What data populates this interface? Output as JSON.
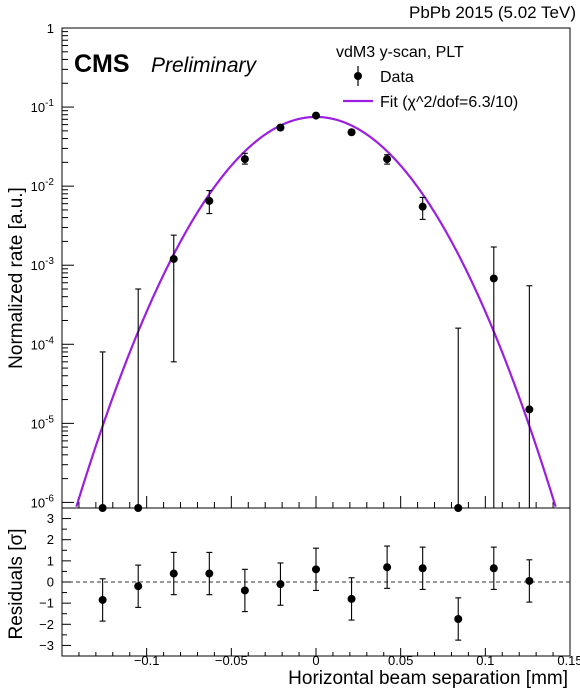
{
  "header": {
    "title": "PbPb 2015 (5.02 TeV)"
  },
  "branding": {
    "cms": "CMS",
    "preliminary": "Preliminary"
  },
  "legend": {
    "title": "vdM3 y-scan, PLT",
    "data_label": "Data",
    "fit_label": "Fit (χ^2/dof=6.3/10)"
  },
  "colors": {
    "fit": "#9a1fe0",
    "data": "#000000",
    "zero_line": "#333333"
  },
  "chart_data": [
    {
      "type": "scatter",
      "panel": "main",
      "ylabel": "Normalized rate [a.u.]",
      "yscale": "log",
      "ylim": [
        8.5e-07,
        1
      ],
      "xlim": [
        -0.15,
        0.15
      ],
      "yticks": [
        {
          "v": 1,
          "label": "1"
        },
        {
          "v": 0.1,
          "label": "10",
          "exp": "-1"
        },
        {
          "v": 0.01,
          "label": "10",
          "exp": "-2"
        },
        {
          "v": 0.001,
          "label": "10",
          "exp": "-3"
        },
        {
          "v": 0.0001,
          "label": "10",
          "exp": "-4"
        },
        {
          "v": 1e-05,
          "label": "10",
          "exp": "-5"
        },
        {
          "v": 1e-06,
          "label": "10",
          "exp": "-6"
        }
      ],
      "series": [
        {
          "name": "Data",
          "points": [
            {
              "x": -0.126,
              "y": 8.5e-07,
              "lo": 8.5e-07,
              "hi": 8e-05
            },
            {
              "x": -0.105,
              "y": 8.5e-07,
              "lo": 8.5e-07,
              "hi": 0.0005
            },
            {
              "x": -0.084,
              "y": 0.0012,
              "lo": 6e-05,
              "hi": 0.0024
            },
            {
              "x": -0.063,
              "y": 0.0065,
              "lo": 0.0045,
              "hi": 0.0088
            },
            {
              "x": -0.042,
              "y": 0.022,
              "lo": 0.019,
              "hi": 0.026
            },
            {
              "x": -0.021,
              "y": 0.055,
              "lo": 0.051,
              "hi": 0.059
            },
            {
              "x": 0.0,
              "y": 0.078,
              "lo": 0.074,
              "hi": 0.082
            },
            {
              "x": 0.021,
              "y": 0.048,
              "lo": 0.045,
              "hi": 0.052
            },
            {
              "x": 0.042,
              "y": 0.022,
              "lo": 0.019,
              "hi": 0.025
            },
            {
              "x": 0.063,
              "y": 0.0055,
              "lo": 0.0038,
              "hi": 0.0072
            },
            {
              "x": 0.084,
              "y": 8.5e-07,
              "lo": 8.5e-07,
              "hi": 0.00016
            },
            {
              "x": 0.105,
              "y": 0.00068,
              "lo": 8.5e-07,
              "hi": 0.0017
            },
            {
              "x": 0.126,
              "y": 1.5e-05,
              "lo": 8.5e-07,
              "hi": 0.00055
            }
          ]
        },
        {
          "name": "Fit (χ^2/dof=6.3/10)",
          "model": "gaussian",
          "amplitude": 0.075,
          "mean": 0.0,
          "sigma": 0.0297
        }
      ]
    },
    {
      "type": "scatter",
      "panel": "residuals",
      "xlabel": "Horizontal beam separation [mm]",
      "ylabel": "Residuals [σ]",
      "ylim": [
        -3.5,
        3.5
      ],
      "xlim": [
        -0.15,
        0.15
      ],
      "xticks": [
        {
          "v": -0.1,
          "label": "−0.1"
        },
        {
          "v": -0.05,
          "label": "−0.05"
        },
        {
          "v": 0,
          "label": "0"
        },
        {
          "v": 0.05,
          "label": "0.05"
        },
        {
          "v": 0.1,
          "label": "0.1"
        },
        {
          "v": 0.15,
          "label": "0.15"
        }
      ],
      "yticks": [
        {
          "v": 3,
          "label": "3"
        },
        {
          "v": 2,
          "label": "2"
        },
        {
          "v": 1,
          "label": "1"
        },
        {
          "v": 0,
          "label": "0"
        },
        {
          "v": -1,
          "label": "−1"
        },
        {
          "v": -2,
          "label": "−2"
        },
        {
          "v": -3,
          "label": "−3"
        }
      ],
      "series": [
        {
          "name": "Residuals",
          "points": [
            {
              "x": -0.126,
              "y": -0.85,
              "err": 1.0
            },
            {
              "x": -0.105,
              "y": -0.2,
              "err": 1.0
            },
            {
              "x": -0.084,
              "y": 0.4,
              "err": 1.0
            },
            {
              "x": -0.063,
              "y": 0.4,
              "err": 1.0
            },
            {
              "x": -0.042,
              "y": -0.4,
              "err": 1.0
            },
            {
              "x": -0.021,
              "y": -0.1,
              "err": 1.0
            },
            {
              "x": 0.0,
              "y": 0.6,
              "err": 1.0
            },
            {
              "x": 0.021,
              "y": -0.8,
              "err": 1.0
            },
            {
              "x": 0.042,
              "y": 0.7,
              "err": 1.0
            },
            {
              "x": 0.063,
              "y": 0.65,
              "err": 1.0
            },
            {
              "x": 0.084,
              "y": -1.75,
              "err": 1.0
            },
            {
              "x": 0.105,
              "y": 0.65,
              "err": 1.0
            },
            {
              "x": 0.126,
              "y": 0.05,
              "err": 1.0
            }
          ]
        }
      ]
    }
  ]
}
